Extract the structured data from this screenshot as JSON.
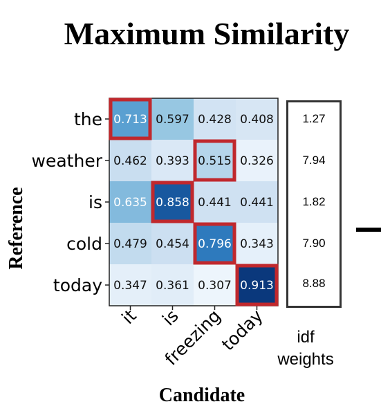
{
  "title": "Maximum Similarity",
  "chart_data": {
    "type": "heatmap",
    "xlabel": "Candidate",
    "ylabel": "Reference",
    "x_categories": [
      "it",
      "is",
      "freezing",
      "today"
    ],
    "y_categories": [
      "the",
      "weather",
      "is",
      "cold",
      "today"
    ],
    "values": [
      [
        0.713,
        0.597,
        0.428,
        0.408
      ],
      [
        0.462,
        0.393,
        0.515,
        0.326
      ],
      [
        0.635,
        0.858,
        0.441,
        0.441
      ],
      [
        0.479,
        0.454,
        0.796,
        0.343
      ],
      [
        0.347,
        0.361,
        0.307,
        0.913
      ]
    ],
    "highlighted_cells": [
      [
        0,
        0
      ],
      [
        1,
        2
      ],
      [
        2,
        1
      ],
      [
        3,
        2
      ],
      [
        4,
        3
      ]
    ],
    "highlight_color": "#c0282d",
    "colormap": "Blues",
    "idf_weights": [
      "1.27",
      "7.94",
      "1.82",
      "7.90",
      "8.88"
    ],
    "idf_label_line1": "idf",
    "idf_label_line2": "weights"
  }
}
